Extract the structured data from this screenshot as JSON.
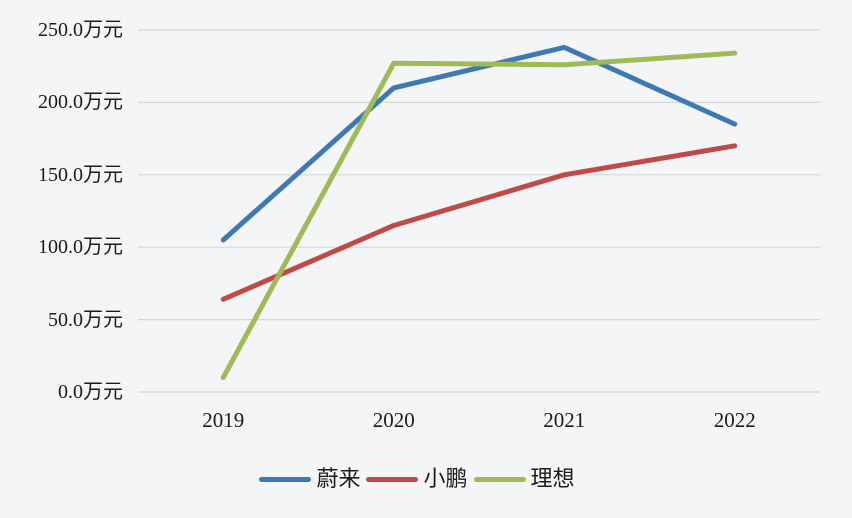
{
  "colors": {
    "background": "#f4f5f6",
    "gridline": "#d5d6d8",
    "text": "#1b1b1b",
    "series_blue": "#3E79B4",
    "series_red": "#BE4B48",
    "series_green": "#9EBB57"
  },
  "chart_data": {
    "type": "line",
    "title": "",
    "xlabel": "",
    "ylabel": "",
    "unit": "万元",
    "categories": [
      "2019",
      "2020",
      "2021",
      "2022"
    ],
    "series": [
      {
        "name": "蔚来",
        "color": "#3E79B4",
        "values": [
          105,
          210,
          238,
          185
        ]
      },
      {
        "name": "小鹏",
        "color": "#BE4B48",
        "values": [
          64,
          115,
          150,
          170
        ]
      },
      {
        "name": "理想",
        "color": "#9EBB57",
        "values": [
          10,
          227,
          226,
          234
        ]
      }
    ],
    "ylim": [
      0,
      250
    ],
    "y_ticks": [
      0,
      50,
      100,
      150,
      200,
      250
    ],
    "y_tick_labels": [
      "0.0万元",
      "50.0万元",
      "100.0万元",
      "150.0万元",
      "200.0万元",
      "250.0万元"
    ],
    "grid": true,
    "legend_position": "bottom"
  }
}
